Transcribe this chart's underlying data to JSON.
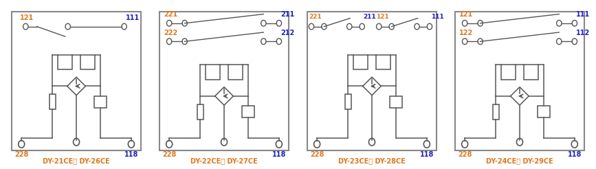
{
  "figsize": [
    8.67,
    2.46
  ],
  "dpi": 100,
  "bg_color": "#FFFFFF",
  "border_color": "#888888",
  "gray": "#555555",
  "orange": "#E07820",
  "blue": "#2020C0",
  "panels": [
    {
      "title": "DY-21CE， DY-26CE",
      "switch_rows": [
        {
          "labels": [
            "121",
            "111"
          ],
          "colors": [
            "orange",
            "blue"
          ],
          "type": "single_NO"
        }
      ]
    },
    {
      "title": "DY-22CE， DY-27CE",
      "switch_rows": [
        {
          "labels": [
            "221",
            "211"
          ],
          "colors": [
            "orange",
            "blue"
          ],
          "type": "double_NO"
        },
        {
          "labels": [
            "222",
            "212"
          ],
          "colors": [
            "orange",
            "blue"
          ],
          "type": "double_NO"
        }
      ]
    },
    {
      "title": "DY-23CE， DY-28CE",
      "switch_rows": [
        {
          "labels": [
            "221",
            "211",
            "121",
            "111"
          ],
          "colors": [
            "orange",
            "blue",
            "orange",
            "blue"
          ],
          "type": "quad_NO"
        }
      ]
    },
    {
      "title": "DY-24CE， DY-29CE",
      "switch_rows": [
        {
          "labels": [
            "121",
            "111"
          ],
          "colors": [
            "orange",
            "blue"
          ],
          "type": "double_NO"
        },
        {
          "labels": [
            "122",
            "112"
          ],
          "colors": [
            "orange",
            "blue"
          ],
          "type": "double_NO"
        }
      ]
    }
  ]
}
